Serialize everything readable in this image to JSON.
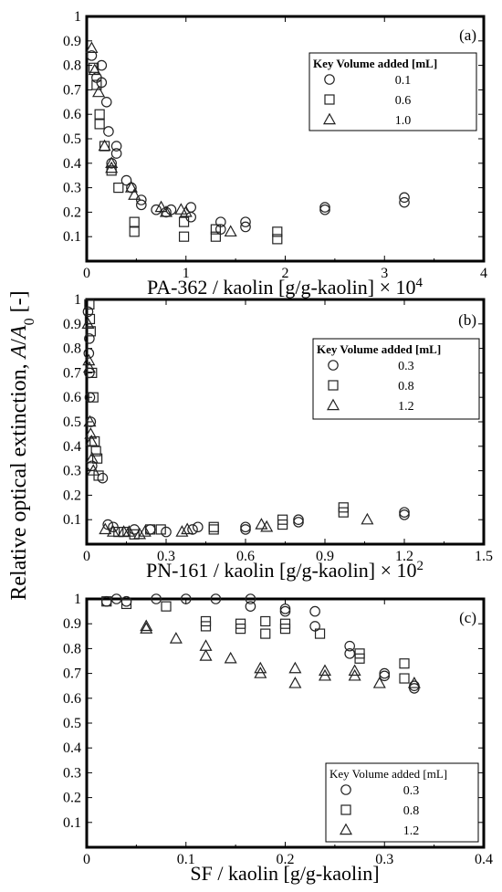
{
  "ylabel": "Relative optical extinction, A/A0 [-]",
  "ylabel_parts": {
    "main": "Relative optical extinction, ",
    "a": "A",
    "slash": "/",
    "a0": "A",
    "sub": "0",
    "tail": " [-]"
  },
  "chart_data": [
    {
      "type": "scatter",
      "panel_label": "(a)",
      "xlabel": "PA-362 / kaolin [g/g-kaolin] × 10",
      "xlabel_exp": "4",
      "xlim": [
        0,
        4
      ],
      "ylim": [
        0,
        1
      ],
      "xticks": [
        0,
        1,
        2,
        3,
        4
      ],
      "yticks": [
        0.1,
        0.2,
        0.3,
        0.4,
        0.5,
        0.6,
        0.7,
        0.8,
        0.9,
        1
      ],
      "legend_title": "Key Volume added [mL]",
      "legend_loc": "upper-right",
      "series": [
        {
          "name": "0.1",
          "marker": "circle",
          "points": [
            [
              0.05,
              0.84
            ],
            [
              0.1,
              0.75
            ],
            [
              0.15,
              0.8
            ],
            [
              0.15,
              0.73
            ],
            [
              0.2,
              0.65
            ],
            [
              0.22,
              0.53
            ],
            [
              0.25,
              0.4
            ],
            [
              0.3,
              0.47
            ],
            [
              0.3,
              0.44
            ],
            [
              0.4,
              0.33
            ],
            [
              0.45,
              0.3
            ],
            [
              0.55,
              0.25
            ],
            [
              0.55,
              0.23
            ],
            [
              0.7,
              0.21
            ],
            [
              0.8,
              0.2
            ],
            [
              0.85,
              0.21
            ],
            [
              1.05,
              0.22
            ],
            [
              1.05,
              0.18
            ],
            [
              1.35,
              0.16
            ],
            [
              1.35,
              0.13
            ],
            [
              1.6,
              0.16
            ],
            [
              1.6,
              0.14
            ],
            [
              2.4,
              0.22
            ],
            [
              2.4,
              0.21
            ],
            [
              3.2,
              0.26
            ],
            [
              3.2,
              0.24
            ]
          ]
        },
        {
          "name": "0.6",
          "marker": "square",
          "points": [
            [
              0.07,
              0.79
            ],
            [
              0.1,
              0.72
            ],
            [
              0.13,
              0.6
            ],
            [
              0.13,
              0.56
            ],
            [
              0.18,
              0.47
            ],
            [
              0.25,
              0.37
            ],
            [
              0.32,
              0.3
            ],
            [
              0.48,
              0.16
            ],
            [
              0.48,
              0.12
            ],
            [
              0.98,
              0.16
            ],
            [
              0.98,
              0.1
            ],
            [
              1.3,
              0.13
            ],
            [
              1.3,
              0.1
            ],
            [
              1.92,
              0.12
            ],
            [
              1.92,
              0.09
            ]
          ]
        },
        {
          "name": "1.0",
          "marker": "triangle",
          "points": [
            [
              0.05,
              0.87
            ],
            [
              0.08,
              0.78
            ],
            [
              0.12,
              0.69
            ],
            [
              0.18,
              0.47
            ],
            [
              0.25,
              0.4
            ],
            [
              0.25,
              0.38
            ],
            [
              0.45,
              0.3
            ],
            [
              0.48,
              0.27
            ],
            [
              0.75,
              0.22
            ],
            [
              0.8,
              0.2
            ],
            [
              0.95,
              0.21
            ],
            [
              1.0,
              0.2
            ],
            [
              1.45,
              0.12
            ]
          ]
        }
      ]
    },
    {
      "type": "scatter",
      "panel_label": "(b)",
      "xlabel": "PN-161 / kaolin [g/g-kaolin] × 10",
      "xlabel_exp": "2",
      "xlim": [
        0,
        1.5
      ],
      "ylim": [
        0,
        1
      ],
      "xticks": [
        0,
        0.3,
        0.6,
        0.9,
        1.2,
        1.5
      ],
      "yticks": [
        0.1,
        0.2,
        0.3,
        0.4,
        0.5,
        0.6,
        0.7,
        0.8,
        0.9,
        1
      ],
      "legend_title": "Key Volume added [mL]",
      "legend_loc": "upper-right",
      "series": [
        {
          "name": "0.3",
          "marker": "circle",
          "points": [
            [
              0.005,
              0.95
            ],
            [
              0.01,
              0.84
            ],
            [
              0.008,
              0.78
            ],
            [
              0.01,
              0.7
            ],
            [
              0.012,
              0.6
            ],
            [
              0.015,
              0.5
            ],
            [
              0.02,
              0.32
            ],
            [
              0.06,
              0.27
            ],
            [
              0.08,
              0.08
            ],
            [
              0.1,
              0.07
            ],
            [
              0.18,
              0.06
            ],
            [
              0.24,
              0.06
            ],
            [
              0.3,
              0.05
            ],
            [
              0.4,
              0.06
            ],
            [
              0.42,
              0.07
            ],
            [
              0.6,
              0.07
            ],
            [
              0.6,
              0.06
            ],
            [
              0.8,
              0.1
            ],
            [
              0.8,
              0.09
            ],
            [
              1.2,
              0.13
            ],
            [
              1.2,
              0.12
            ]
          ]
        },
        {
          "name": "0.8",
          "marker": "square",
          "points": [
            [
              0.01,
              0.98
            ],
            [
              0.012,
              0.92
            ],
            [
              0.015,
              0.87
            ],
            [
              0.02,
              0.7
            ],
            [
              0.025,
              0.6
            ],
            [
              0.03,
              0.42
            ],
            [
              0.035,
              0.38
            ],
            [
              0.04,
              0.35
            ],
            [
              0.045,
              0.28
            ],
            [
              0.12,
              0.05
            ],
            [
              0.14,
              0.05
            ],
            [
              0.18,
              0.04
            ],
            [
              0.24,
              0.06
            ],
            [
              0.28,
              0.06
            ],
            [
              0.48,
              0.07
            ],
            [
              0.48,
              0.06
            ],
            [
              0.74,
              0.1
            ],
            [
              0.74,
              0.08
            ],
            [
              0.97,
              0.15
            ],
            [
              0.97,
              0.13
            ]
          ]
        },
        {
          "name": "1.2",
          "marker": "triangle",
          "points": [
            [
              0.005,
              0.9
            ],
            [
              0.008,
              0.75
            ],
            [
              0.01,
              0.72
            ],
            [
              0.012,
              0.5
            ],
            [
              0.015,
              0.45
            ],
            [
              0.018,
              0.42
            ],
            [
              0.02,
              0.35
            ],
            [
              0.025,
              0.3
            ],
            [
              0.07,
              0.06
            ],
            [
              0.1,
              0.05
            ],
            [
              0.14,
              0.05
            ],
            [
              0.16,
              0.05
            ],
            [
              0.2,
              0.04
            ],
            [
              0.22,
              0.05
            ],
            [
              0.36,
              0.05
            ],
            [
              0.38,
              0.06
            ],
            [
              0.66,
              0.08
            ],
            [
              0.68,
              0.07
            ],
            [
              1.06,
              0.1
            ]
          ]
        }
      ]
    },
    {
      "type": "scatter",
      "panel_label": "(c)",
      "xlabel": "SF / kaolin [g/g-kaolin]",
      "xlabel_exp": "",
      "xlim": [
        0,
        0.4
      ],
      "ylim": [
        0,
        1
      ],
      "xticks": [
        0,
        0.1,
        0.2,
        0.3,
        0.4
      ],
      "yticks": [
        0.1,
        0.2,
        0.3,
        0.4,
        0.5,
        0.6,
        0.7,
        0.8,
        0.9,
        1
      ],
      "legend_title": "Key  Volume added [mL]",
      "legend_loc": "lower-right",
      "series": [
        {
          "name": "0.3",
          "marker": "circle",
          "points": [
            [
              0.02,
              0.99
            ],
            [
              0.03,
              1.0
            ],
            [
              0.04,
              0.99
            ],
            [
              0.07,
              1.0
            ],
            [
              0.1,
              1.0
            ],
            [
              0.13,
              1.0
            ],
            [
              0.165,
              1.0
            ],
            [
              0.165,
              0.97
            ],
            [
              0.2,
              0.96
            ],
            [
              0.2,
              0.95
            ],
            [
              0.23,
              0.95
            ],
            [
              0.23,
              0.89
            ],
            [
              0.265,
              0.81
            ],
            [
              0.265,
              0.78
            ],
            [
              0.3,
              0.7
            ],
            [
              0.3,
              0.69
            ],
            [
              0.33,
              0.65
            ],
            [
              0.33,
              0.64
            ]
          ]
        },
        {
          "name": "0.8",
          "marker": "square",
          "points": [
            [
              0.02,
              0.99
            ],
            [
              0.04,
              0.98
            ],
            [
              0.08,
              0.97
            ],
            [
              0.12,
              0.91
            ],
            [
              0.12,
              0.89
            ],
            [
              0.155,
              0.9
            ],
            [
              0.155,
              0.88
            ],
            [
              0.18,
              0.91
            ],
            [
              0.18,
              0.86
            ],
            [
              0.2,
              0.9
            ],
            [
              0.2,
              0.88
            ],
            [
              0.235,
              0.86
            ],
            [
              0.275,
              0.78
            ],
            [
              0.275,
              0.76
            ],
            [
              0.32,
              0.74
            ],
            [
              0.32,
              0.68
            ]
          ]
        },
        {
          "name": "1.2",
          "marker": "triangle",
          "points": [
            [
              0.06,
              0.89
            ],
            [
              0.06,
              0.88
            ],
            [
              0.09,
              0.84
            ],
            [
              0.12,
              0.81
            ],
            [
              0.12,
              0.77
            ],
            [
              0.145,
              0.76
            ],
            [
              0.175,
              0.72
            ],
            [
              0.175,
              0.7
            ],
            [
              0.21,
              0.72
            ],
            [
              0.21,
              0.66
            ],
            [
              0.24,
              0.71
            ],
            [
              0.24,
              0.69
            ],
            [
              0.27,
              0.71
            ],
            [
              0.27,
              0.69
            ],
            [
              0.295,
              0.66
            ],
            [
              0.33,
              0.66
            ]
          ]
        }
      ]
    }
  ]
}
